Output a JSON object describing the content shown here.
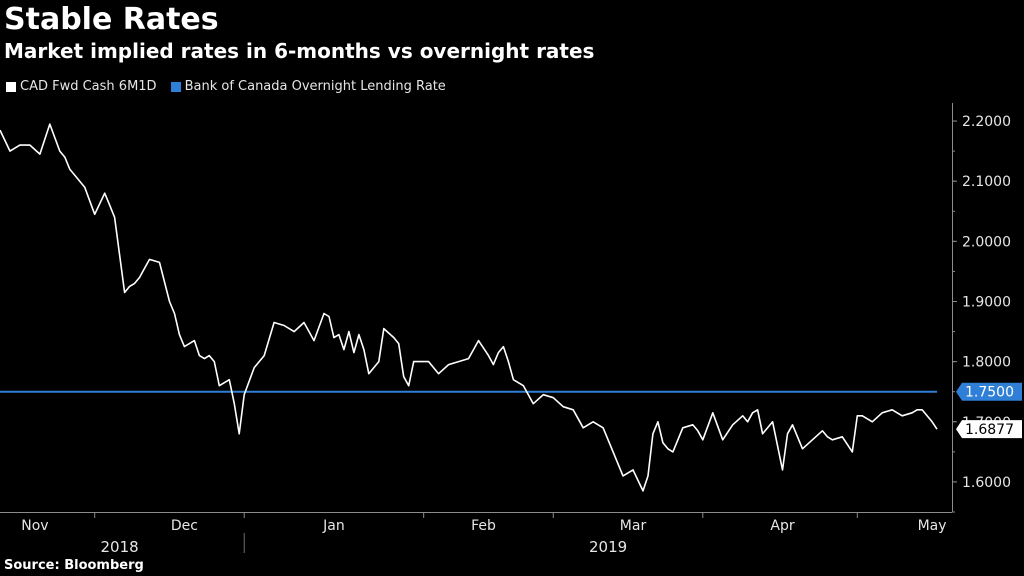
{
  "title": "Stable Rates",
  "subtitle": "Market implied rates in 6-months vs overnight rates",
  "source": "Source: Bloomberg",
  "colors": {
    "background": "#000000",
    "series_cad": "#ffffff",
    "series_boc": "#2f7fd6",
    "text": "#e6e6e6"
  },
  "chart_data": {
    "type": "line",
    "title": "Stable Rates",
    "subtitle": "Market implied rates in 6-months vs overnight rates",
    "xlabel": "",
    "ylabel": "",
    "ylim": [
      1.55,
      2.23
    ],
    "yticks": [
      1.6,
      1.7,
      1.8,
      1.9,
      2.0,
      2.1,
      2.2
    ],
    "ytick_labels": [
      "1.6000",
      "1.7000",
      "1.8000",
      "1.9000",
      "2.0000",
      "2.1000",
      "2.2000"
    ],
    "month_labels": [
      "Nov",
      "Dec",
      "Jan",
      "Feb",
      "Mar",
      "Apr",
      "May"
    ],
    "month_positions": [
      7,
      37,
      67,
      97,
      127,
      157,
      187
    ],
    "month_boundaries": [
      19,
      49,
      85,
      111,
      141,
      172
    ],
    "year_labels": [
      "2018",
      "2019"
    ],
    "year_positions": [
      24,
      122
    ],
    "year_divider": 49,
    "xlim": [
      0,
      191
    ],
    "legend_position": "top-left",
    "series": [
      {
        "name": "CAD Fwd Cash 6M1D",
        "color": "#ffffff",
        "last_value_label": "1.6877",
        "x": [
          0,
          2,
          4,
          6,
          8,
          10,
          12,
          13,
          14,
          15,
          17,
          19,
          21,
          22,
          23,
          25,
          26,
          27,
          28,
          29,
          30,
          32,
          34,
          35,
          36,
          37,
          39,
          40,
          41,
          42,
          43,
          44,
          46,
          47,
          48,
          49,
          51,
          52,
          53,
          55,
          57,
          59,
          61,
          63,
          65,
          66,
          67,
          68,
          69,
          70,
          71,
          72,
          73,
          74,
          76,
          77,
          79,
          80,
          81,
          82,
          83,
          84,
          86,
          88,
          90,
          92,
          94,
          96,
          98,
          99,
          100,
          101,
          102,
          103,
          105,
          107,
          109,
          111,
          113,
          115,
          117,
          119,
          121,
          123,
          125,
          127,
          129,
          130,
          131,
          132,
          133,
          134,
          135,
          137,
          139,
          140,
          141,
          143,
          145,
          147,
          149,
          150,
          151,
          152,
          153,
          155,
          157,
          158,
          159,
          161,
          163,
          165,
          166,
          167,
          169,
          171,
          172,
          173,
          175,
          177,
          179,
          181,
          183,
          184,
          185,
          187,
          188
        ],
        "values": [
          2.185,
          2.15,
          2.16,
          2.16,
          2.145,
          2.195,
          2.15,
          2.14,
          2.12,
          2.11,
          2.09,
          2.045,
          2.08,
          2.06,
          2.04,
          1.915,
          1.925,
          1.93,
          1.94,
          1.955,
          1.97,
          1.965,
          1.9,
          1.88,
          1.845,
          1.825,
          1.835,
          1.81,
          1.805,
          1.81,
          1.8,
          1.76,
          1.77,
          1.73,
          1.68,
          1.745,
          1.79,
          1.8,
          1.81,
          1.865,
          1.86,
          1.85,
          1.865,
          1.835,
          1.88,
          1.875,
          1.84,
          1.845,
          1.82,
          1.85,
          1.815,
          1.845,
          1.82,
          1.78,
          1.8,
          1.855,
          1.84,
          1.83,
          1.775,
          1.76,
          1.8,
          1.8,
          1.8,
          1.78,
          1.795,
          1.8,
          1.805,
          1.835,
          1.81,
          1.795,
          1.815,
          1.825,
          1.8,
          1.77,
          1.76,
          1.73,
          1.745,
          1.74,
          1.725,
          1.72,
          1.69,
          1.7,
          1.69,
          1.65,
          1.61,
          1.62,
          1.585,
          1.61,
          1.68,
          1.7,
          1.665,
          1.655,
          1.65,
          1.69,
          1.695,
          1.685,
          1.67,
          1.715,
          1.67,
          1.695,
          1.71,
          1.7,
          1.715,
          1.72,
          1.68,
          1.7,
          1.62,
          1.68,
          1.695,
          1.655,
          1.67,
          1.685,
          1.675,
          1.67,
          1.675,
          1.65,
          1.71,
          1.71,
          1.7,
          1.715,
          1.72,
          1.71,
          1.715,
          1.72,
          1.72,
          1.7,
          1.6877
        ]
      },
      {
        "name": "Bank of Canada Overnight Lending Rate",
        "color": "#2f7fd6",
        "last_value_label": "1.7500",
        "x": [
          0,
          188
        ],
        "values": [
          1.75,
          1.75
        ]
      }
    ]
  }
}
